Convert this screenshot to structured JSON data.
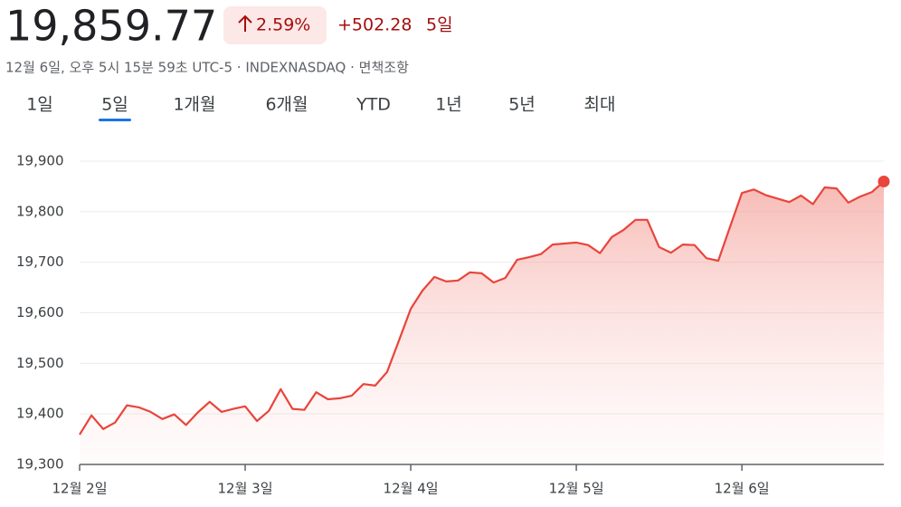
{
  "header": {
    "price": "19,859.77",
    "change_percent": "2.59%",
    "change": "+502.28",
    "period": "5일",
    "meta": "12월 6일, 오후 5시 15분 59초 UTC-5 · INDEXNASDAQ · 면책조항",
    "tabs": [
      "1일",
      "5일",
      "1개월",
      "6개월",
      "YTD",
      "1년",
      "5년",
      "최대"
    ],
    "selected_tab": 1
  },
  "chart_data": {
    "type": "line",
    "color": "#e8453c",
    "grid": true,
    "categories": [
      "12월 2일",
      null,
      null,
      null,
      null,
      null,
      null,
      null,
      null,
      null,
      null,
      null,
      null,
      null,
      "12월 3일",
      null,
      null,
      null,
      null,
      null,
      null,
      null,
      null,
      null,
      null,
      null,
      null,
      null,
      "12월 4일",
      null,
      null,
      null,
      null,
      null,
      null,
      null,
      null,
      null,
      null,
      null,
      null,
      null,
      "12월 5일",
      null,
      null,
      null,
      null,
      null,
      null,
      null,
      null,
      null,
      null,
      null,
      null,
      null,
      "12월 6일",
      null,
      null,
      null,
      null,
      null,
      null,
      null,
      null,
      null,
      null,
      null,
      null
    ],
    "values": [
      19359,
      19397,
      19370,
      19383,
      19417,
      19413,
      19404,
      19390,
      19399,
      19378,
      19403,
      19424,
      19404,
      19410,
      19415,
      19386,
      19406,
      19449,
      19410,
      19408,
      19443,
      19429,
      19431,
      19436,
      19459,
      19456,
      19483,
      19545,
      19608,
      19644,
      19671,
      19662,
      19664,
      19680,
      19678,
      19660,
      19669,
      19705,
      19710,
      19716,
      19735,
      19737,
      19739,
      19734,
      19718,
      19750,
      19764,
      19784,
      19784,
      19730,
      19719,
      19735,
      19734,
      19708,
      19703,
      19770,
      19837,
      19844,
      19833,
      19826,
      19819,
      19832,
      19815,
      19848,
      19846,
      19818,
      19830,
      19839,
      19859.77
    ],
    "ylim": [
      19300,
      19900
    ],
    "yticks": [
      {
        "value": 19300,
        "label": "19,300"
      },
      {
        "value": 19400,
        "label": "19,400"
      },
      {
        "value": 19500,
        "label": "19,500"
      },
      {
        "value": 19600,
        "label": "19,600"
      },
      {
        "value": 19700,
        "label": "19,700"
      },
      {
        "value": 19800,
        "label": "19,800"
      },
      {
        "value": 19900,
        "label": "19,900"
      }
    ]
  }
}
